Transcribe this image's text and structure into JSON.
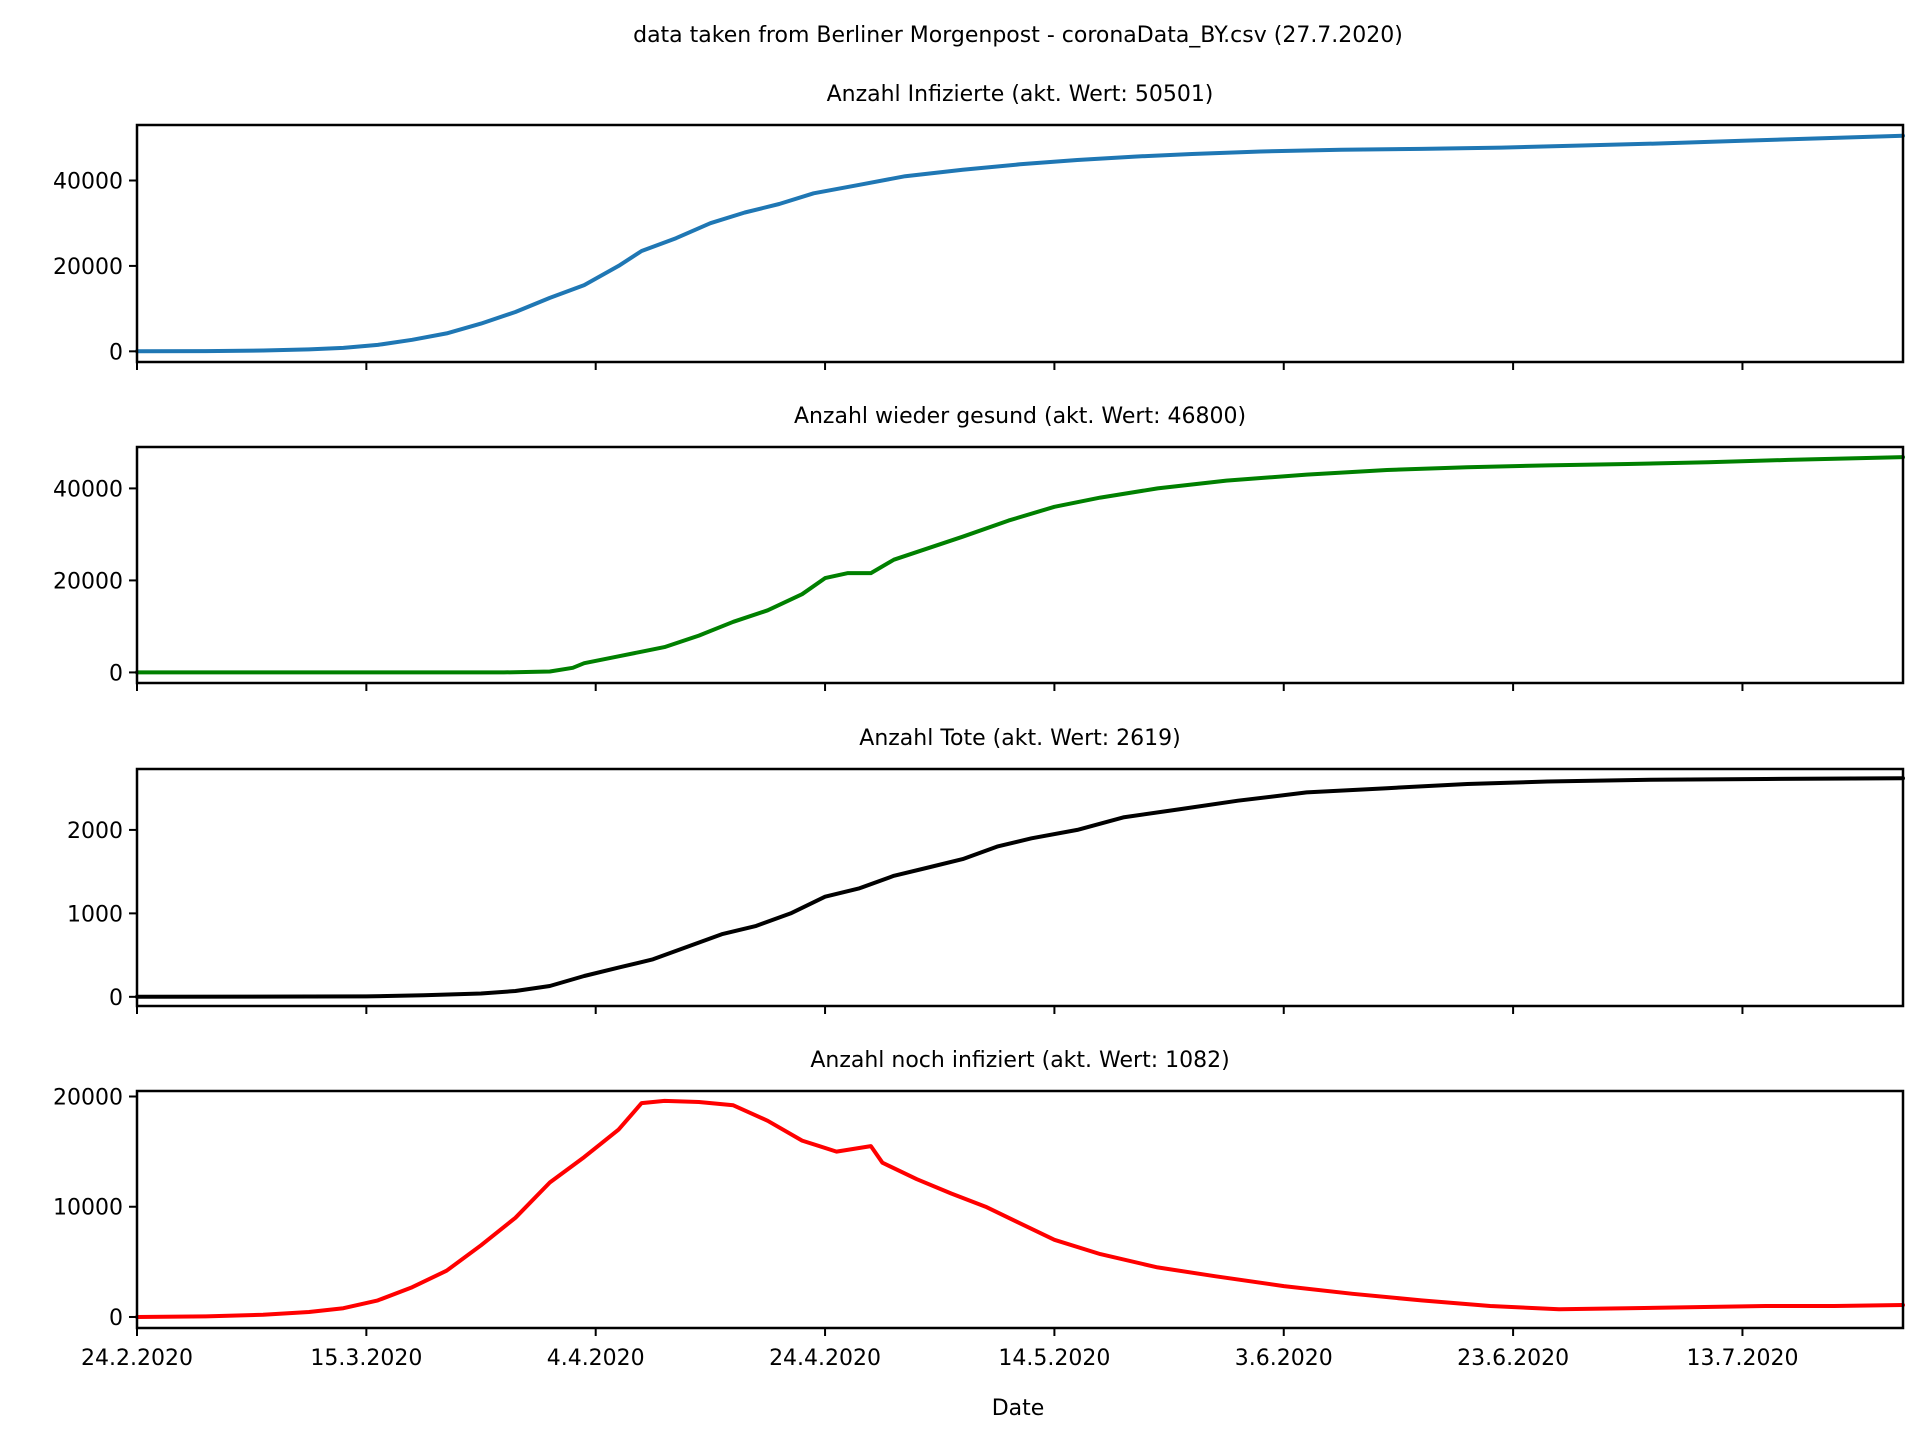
{
  "figure": {
    "suptitle": "data taken from Berliner Morgenpost - coronaData_BY.csv (27.7.2020)",
    "xlabel": "Date"
  },
  "chart_data": [
    {
      "type": "line",
      "title": "Anzahl Infizierte (akt. Wert: 50501)",
      "color": "#1f77b4",
      "yticks": [
        0,
        20000,
        40000
      ],
      "ylim": [
        -2500,
        53000
      ],
      "xlim": [
        "2020-02-24",
        "2020-07-27"
      ],
      "x_tick_dates": [
        "2020-02-24",
        "2020-03-15",
        "2020-04-04",
        "2020-04-24",
        "2020-05-14",
        "2020-06-03",
        "2020-06-23",
        "2020-07-13"
      ],
      "x_tick_labels": [],
      "points": [
        [
          "2020-02-24",
          0
        ],
        [
          "2020-03-01",
          50
        ],
        [
          "2020-03-06",
          200
        ],
        [
          "2020-03-10",
          450
        ],
        [
          "2020-03-13",
          800
        ],
        [
          "2020-03-16",
          1500
        ],
        [
          "2020-03-19",
          2700
        ],
        [
          "2020-03-22",
          4200
        ],
        [
          "2020-03-25",
          6500
        ],
        [
          "2020-03-28",
          9200
        ],
        [
          "2020-03-31",
          12500
        ],
        [
          "2020-04-03",
          15500
        ],
        [
          "2020-04-06",
          20000
        ],
        [
          "2020-04-08",
          23500
        ],
        [
          "2020-04-11",
          26500
        ],
        [
          "2020-04-14",
          30000
        ],
        [
          "2020-04-17",
          32500
        ],
        [
          "2020-04-20",
          34500
        ],
        [
          "2020-04-23",
          37000
        ],
        [
          "2020-04-27",
          39000
        ],
        [
          "2020-05-01",
          41000
        ],
        [
          "2020-05-06",
          42500
        ],
        [
          "2020-05-11",
          43800
        ],
        [
          "2020-05-16",
          44800
        ],
        [
          "2020-05-21",
          45600
        ],
        [
          "2020-05-26",
          46200
        ],
        [
          "2020-06-01",
          46800
        ],
        [
          "2020-06-08",
          47200
        ],
        [
          "2020-06-15",
          47400
        ],
        [
          "2020-06-22",
          47700
        ],
        [
          "2020-06-29",
          48200
        ],
        [
          "2020-07-06",
          48700
        ],
        [
          "2020-07-13",
          49300
        ],
        [
          "2020-07-20",
          49900
        ],
        [
          "2020-07-27",
          50501
        ]
      ]
    },
    {
      "type": "line",
      "title": "Anzahl wieder gesund (akt. Wert: 46800)",
      "color": "#008000",
      "yticks": [
        0,
        20000,
        40000
      ],
      "ylim": [
        -2300,
        49000
      ],
      "xlim": [
        "2020-02-24",
        "2020-07-27"
      ],
      "x_tick_dates": [
        "2020-02-24",
        "2020-03-15",
        "2020-04-04",
        "2020-04-24",
        "2020-05-14",
        "2020-06-03",
        "2020-06-23",
        "2020-07-13"
      ],
      "x_tick_labels": [],
      "points": [
        [
          "2020-02-24",
          0
        ],
        [
          "2020-03-27",
          0
        ],
        [
          "2020-03-31",
          200
        ],
        [
          "2020-04-02",
          1000
        ],
        [
          "2020-04-03",
          2000
        ],
        [
          "2020-04-06",
          3500
        ],
        [
          "2020-04-08",
          4500
        ],
        [
          "2020-04-10",
          5500
        ],
        [
          "2020-04-13",
          8000
        ],
        [
          "2020-04-16",
          11000
        ],
        [
          "2020-04-19",
          13500
        ],
        [
          "2020-04-22",
          17000
        ],
        [
          "2020-04-24",
          20500
        ],
        [
          "2020-04-26",
          21600
        ],
        [
          "2020-04-28",
          21600
        ],
        [
          "2020-04-30",
          24500
        ],
        [
          "2020-05-03",
          27000
        ],
        [
          "2020-05-06",
          29500
        ],
        [
          "2020-05-10",
          33000
        ],
        [
          "2020-05-14",
          36000
        ],
        [
          "2020-05-18",
          38000
        ],
        [
          "2020-05-23",
          40000
        ],
        [
          "2020-05-29",
          41700
        ],
        [
          "2020-06-05",
          43000
        ],
        [
          "2020-06-12",
          44000
        ],
        [
          "2020-06-19",
          44600
        ],
        [
          "2020-06-26",
          45000
        ],
        [
          "2020-07-03",
          45300
        ],
        [
          "2020-07-10",
          45700
        ],
        [
          "2020-07-17",
          46200
        ],
        [
          "2020-07-27",
          46800
        ]
      ]
    },
    {
      "type": "line",
      "title": "Anzahl Tote (akt. Wert: 2619)",
      "color": "#000000",
      "yticks": [
        0,
        1000,
        2000
      ],
      "ylim": [
        -110,
        2730
      ],
      "xlim": [
        "2020-02-24",
        "2020-07-27"
      ],
      "x_tick_dates": [
        "2020-02-24",
        "2020-03-15",
        "2020-04-04",
        "2020-04-24",
        "2020-05-14",
        "2020-06-03",
        "2020-06-23",
        "2020-07-13"
      ],
      "x_tick_labels": [],
      "points": [
        [
          "2020-02-24",
          0
        ],
        [
          "2020-03-15",
          5
        ],
        [
          "2020-03-20",
          20
        ],
        [
          "2020-03-25",
          40
        ],
        [
          "2020-03-28",
          70
        ],
        [
          "2020-03-31",
          130
        ],
        [
          "2020-04-03",
          250
        ],
        [
          "2020-04-06",
          350
        ],
        [
          "2020-04-09",
          450
        ],
        [
          "2020-04-12",
          600
        ],
        [
          "2020-04-15",
          750
        ],
        [
          "2020-04-18",
          850
        ],
        [
          "2020-04-21",
          1000
        ],
        [
          "2020-04-24",
          1200
        ],
        [
          "2020-04-27",
          1300
        ],
        [
          "2020-04-30",
          1450
        ],
        [
          "2020-05-03",
          1550
        ],
        [
          "2020-05-06",
          1650
        ],
        [
          "2020-05-09",
          1800
        ],
        [
          "2020-05-12",
          1900
        ],
        [
          "2020-05-16",
          2000
        ],
        [
          "2020-05-20",
          2150
        ],
        [
          "2020-05-25",
          2250
        ],
        [
          "2020-05-30",
          2350
        ],
        [
          "2020-06-05",
          2450
        ],
        [
          "2020-06-12",
          2500
        ],
        [
          "2020-06-19",
          2550
        ],
        [
          "2020-06-26",
          2580
        ],
        [
          "2020-07-05",
          2600
        ],
        [
          "2020-07-15",
          2610
        ],
        [
          "2020-07-27",
          2619
        ]
      ]
    },
    {
      "type": "line",
      "title": "Anzahl noch infiziert (akt. Wert: 1082)",
      "color": "#ff0000",
      "yticks": [
        0,
        10000,
        20000
      ],
      "ylim": [
        -1000,
        20500
      ],
      "xlim": [
        "2020-02-24",
        "2020-07-27"
      ],
      "x_tick_dates": [
        "2020-02-24",
        "2020-03-15",
        "2020-04-04",
        "2020-04-24",
        "2020-05-14",
        "2020-06-03",
        "2020-06-23",
        "2020-07-13"
      ],
      "x_tick_labels": [
        "24.2.2020",
        "15.3.2020",
        "4.4.2020",
        "24.4.2020",
        "14.5.2020",
        "3.6.2020",
        "23.6.2020",
        "13.7.2020"
      ],
      "points": [
        [
          "2020-02-24",
          0
        ],
        [
          "2020-03-01",
          50
        ],
        [
          "2020-03-06",
          200
        ],
        [
          "2020-03-10",
          450
        ],
        [
          "2020-03-13",
          800
        ],
        [
          "2020-03-16",
          1500
        ],
        [
          "2020-03-19",
          2700
        ],
        [
          "2020-03-22",
          4200
        ],
        [
          "2020-03-25",
          6500
        ],
        [
          "2020-03-28",
          9000
        ],
        [
          "2020-03-31",
          12200
        ],
        [
          "2020-04-03",
          14500
        ],
        [
          "2020-04-06",
          17000
        ],
        [
          "2020-04-08",
          19400
        ],
        [
          "2020-04-10",
          19600
        ],
        [
          "2020-04-13",
          19500
        ],
        [
          "2020-04-16",
          19200
        ],
        [
          "2020-04-19",
          17800
        ],
        [
          "2020-04-22",
          16000
        ],
        [
          "2020-04-25",
          15000
        ],
        [
          "2020-04-28",
          15500
        ],
        [
          "2020-04-29",
          14000
        ],
        [
          "2020-05-02",
          12500
        ],
        [
          "2020-05-05",
          11200
        ],
        [
          "2020-05-08",
          10000
        ],
        [
          "2020-05-11",
          8500
        ],
        [
          "2020-05-14",
          7000
        ],
        [
          "2020-05-18",
          5700
        ],
        [
          "2020-05-23",
          4500
        ],
        [
          "2020-05-28",
          3700
        ],
        [
          "2020-06-03",
          2800
        ],
        [
          "2020-06-09",
          2100
        ],
        [
          "2020-06-15",
          1500
        ],
        [
          "2020-06-21",
          1000
        ],
        [
          "2020-06-27",
          700
        ],
        [
          "2020-07-03",
          800
        ],
        [
          "2020-07-09",
          900
        ],
        [
          "2020-07-15",
          1000
        ],
        [
          "2020-07-21",
          1000
        ],
        [
          "2020-07-27",
          1082
        ]
      ]
    }
  ]
}
